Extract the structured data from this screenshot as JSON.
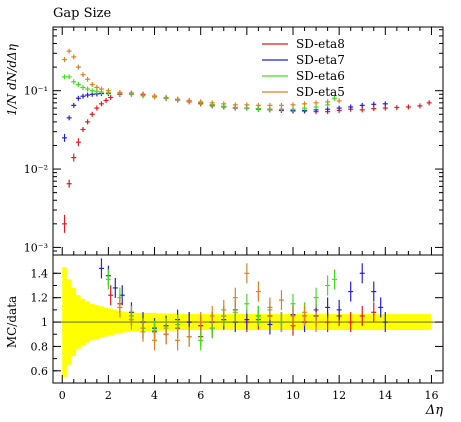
{
  "colors": {
    "band": "#ffff00",
    "ref_line": "#7a7a00",
    "axis": "#000000"
  },
  "chart_data": [
    {
      "type": "scatter",
      "title": "Gap Size",
      "ylabel": "1/N dN/dΔη",
      "xlabel": "",
      "y_scale": "log",
      "xlim": [
        -0.4,
        16.5
      ],
      "ylim": [
        0.0008,
        0.65
      ],
      "y_tick_values": [
        0.001,
        0.01,
        0.1
      ],
      "y_tick_labels": [
        "10⁻³",
        "10⁻²",
        "10⁻¹"
      ],
      "legend": {
        "position": "top-right"
      },
      "series": [
        {
          "name": "SD-eta8",
          "color": "#e41a1c",
          "x": [
            0.1,
            0.3,
            0.5,
            0.7,
            0.9,
            1.1,
            1.3,
            1.5,
            1.7,
            1.9,
            2.1,
            2.5,
            3.0,
            3.5,
            4.0,
            4.5,
            5.0,
            5.5,
            6.0,
            6.5,
            7.0,
            7.5,
            8.0,
            8.5,
            9.0,
            9.5,
            10.0,
            10.5,
            11.0,
            11.5,
            12.0,
            12.5,
            13.0,
            13.5,
            14.0,
            14.5,
            15.0,
            15.5,
            15.9
          ],
          "y": [
            0.002,
            0.0065,
            0.014,
            0.022,
            0.032,
            0.04,
            0.05,
            0.06,
            0.068,
            0.075,
            0.082,
            0.09,
            0.093,
            0.09,
            0.085,
            0.08,
            0.076,
            0.072,
            0.068,
            0.064,
            0.062,
            0.06,
            0.06,
            0.058,
            0.057,
            0.056,
            0.055,
            0.055,
            0.054,
            0.054,
            0.056,
            0.058,
            0.057,
            0.059,
            0.06,
            0.061,
            0.062,
            0.064,
            0.07
          ]
        },
        {
          "name": "SD-eta7",
          "color": "#2222dd",
          "x": [
            0.1,
            0.3,
            0.5,
            0.7,
            0.9,
            1.1,
            1.3,
            1.5,
            1.7,
            2.0,
            2.5,
            3.0,
            3.5,
            4.0,
            4.5,
            5.0,
            5.5,
            6.0,
            6.5,
            7.0,
            7.5,
            8.0,
            8.5,
            9.0,
            9.5,
            10.0,
            10.5,
            11.0,
            11.5,
            12.0,
            12.5,
            13.0,
            13.5,
            14.0
          ],
          "y": [
            0.025,
            0.045,
            0.065,
            0.08,
            0.085,
            0.088,
            0.09,
            0.091,
            0.092,
            0.092,
            0.091,
            0.09,
            0.088,
            0.085,
            0.08,
            0.077,
            0.074,
            0.07,
            0.066,
            0.063,
            0.061,
            0.06,
            0.059,
            0.058,
            0.057,
            0.056,
            0.056,
            0.057,
            0.058,
            0.06,
            0.062,
            0.065,
            0.067,
            0.068
          ]
        },
        {
          "name": "SD-eta6",
          "color": "#44dd22",
          "x": [
            0.1,
            0.3,
            0.5,
            0.7,
            0.9,
            1.1,
            1.3,
            1.5,
            1.7,
            2.0,
            2.5,
            3.0,
            3.5,
            4.0,
            4.5,
            5.0,
            5.5,
            6.0,
            6.5,
            7.0,
            7.5,
            8.0,
            8.5,
            9.0,
            9.5,
            10.0,
            10.5,
            11.0,
            11.5,
            11.8
          ],
          "y": [
            0.15,
            0.15,
            0.13,
            0.12,
            0.11,
            0.105,
            0.1,
            0.098,
            0.096,
            0.094,
            0.092,
            0.09,
            0.086,
            0.083,
            0.08,
            0.077,
            0.073,
            0.07,
            0.066,
            0.063,
            0.061,
            0.06,
            0.059,
            0.058,
            0.058,
            0.058,
            0.06,
            0.062,
            0.066,
            0.08
          ]
        },
        {
          "name": "SD-eta5",
          "color": "#e08020",
          "x": [
            0.1,
            0.3,
            0.5,
            0.7,
            0.9,
            1.1,
            1.3,
            1.5,
            1.7,
            2.0,
            2.5,
            3.0,
            3.5,
            4.0,
            4.5,
            5.0,
            5.5,
            6.0,
            6.5,
            7.0,
            7.5,
            8.0,
            8.5,
            9.0,
            9.5,
            10.0,
            10.5,
            11.0,
            11.5,
            12.0
          ],
          "y": [
            0.25,
            0.32,
            0.27,
            0.2,
            0.16,
            0.14,
            0.12,
            0.11,
            0.105,
            0.1,
            0.095,
            0.092,
            0.088,
            0.085,
            0.082,
            0.078,
            0.075,
            0.072,
            0.07,
            0.068,
            0.066,
            0.066,
            0.065,
            0.065,
            0.065,
            0.066,
            0.068,
            0.07,
            0.072,
            0.074
          ]
        }
      ]
    },
    {
      "type": "scatter",
      "ylabel": "MC/data",
      "xlabel": "Δη",
      "xlim": [
        -0.4,
        16.5
      ],
      "ylim": [
        0.5,
        1.55
      ],
      "y_ticks": [
        0.6,
        0.8,
        1,
        1.2,
        1.4
      ],
      "x_ticks": [
        0,
        2,
        4,
        6,
        8,
        10,
        12,
        14,
        16
      ],
      "reference_line": 1,
      "band": {
        "x": [
          0.1,
          0.3,
          0.5,
          0.7,
          0.9,
          1.1,
          1.3,
          1.5,
          1.7,
          1.9,
          2.1,
          2.3,
          2.5,
          2.7,
          2.9,
          3.5,
          4.5,
          5.5,
          6.5,
          7.5,
          8.5,
          9.5,
          10.5,
          11.5,
          12.5,
          13.5,
          14.5,
          15.5,
          16.0
        ],
        "half_width": [
          0.45,
          0.35,
          0.28,
          0.22,
          0.19,
          0.17,
          0.15,
          0.14,
          0.13,
          0.12,
          0.11,
          0.1,
          0.09,
          0.085,
          0.08,
          0.075,
          0.07,
          0.065,
          0.065,
          0.065,
          0.065,
          0.065,
          0.065,
          0.065,
          0.065,
          0.065,
          0.065,
          0.065,
          0.065
        ]
      },
      "series": [
        {
          "name": "SD-eta8",
          "color": "#e41a1c",
          "x": [
            2.1,
            2.5,
            3.0,
            3.5,
            4.0,
            4.5,
            5.0,
            5.5,
            6.0,
            6.5,
            7.0,
            7.5,
            8.0,
            8.5,
            9.0,
            9.5,
            10.0,
            10.5,
            11.0,
            11.5,
            12.0,
            12.5,
            13.0,
            13.5
          ],
          "y": [
            1.22,
            1.15,
            1.05,
            0.95,
            0.92,
            0.9,
            0.95,
            1.0,
            0.88,
            0.95,
            1.05,
            1.1,
            1.0,
            1.02,
            1.05,
            1.0,
            0.97,
            1.05,
            1.1,
            1.0,
            1.05,
            1.0,
            1.05,
            1.08
          ]
        },
        {
          "name": "SD-eta7",
          "color": "#2222dd",
          "x": [
            1.7,
            2.0,
            2.3,
            2.6,
            3.0,
            3.5,
            4.0,
            4.5,
            5.0,
            5.5,
            6.0,
            6.5,
            7.0,
            7.5,
            8.0,
            8.5,
            9.0,
            9.5,
            10.0,
            10.5,
            11.0,
            11.5,
            12.0,
            12.5,
            13.0,
            13.5,
            13.8,
            14.0
          ],
          "y": [
            1.44,
            1.38,
            1.28,
            1.22,
            1.08,
            1.0,
            0.95,
            0.97,
            1.02,
            1.0,
            0.97,
            1.0,
            1.02,
            1.0,
            1.02,
            1.05,
            0.98,
            1.0,
            1.06,
            1.0,
            1.05,
            1.12,
            1.1,
            1.25,
            1.4,
            1.25,
            1.12,
            1.0
          ]
        },
        {
          "name": "SD-eta6",
          "color": "#44dd22",
          "x": [
            2.0,
            2.5,
            3.0,
            3.5,
            4.0,
            4.5,
            5.0,
            5.5,
            6.0,
            6.5,
            7.0,
            7.5,
            8.0,
            8.5,
            9.0,
            9.5,
            10.0,
            10.5,
            11.0,
            11.5,
            11.8
          ],
          "y": [
            1.35,
            1.2,
            1.05,
            0.95,
            0.93,
            0.95,
            0.98,
            0.88,
            0.85,
            0.95,
            1.05,
            1.08,
            1.15,
            1.05,
            1.1,
            1.0,
            1.15,
            1.08,
            1.2,
            1.3,
            1.35
          ]
        },
        {
          "name": "SD-eta5",
          "color": "#e08020",
          "x": [
            2.5,
            3.0,
            3.5,
            4.0,
            4.5,
            5.0,
            5.5,
            6.0,
            6.5,
            7.0,
            7.5,
            8.0,
            8.5,
            9.0,
            9.5,
            10.0,
            10.5,
            11.0
          ],
          "y": [
            1.12,
            1.02,
            0.92,
            0.85,
            0.9,
            0.85,
            0.88,
            1.0,
            1.05,
            1.1,
            1.2,
            1.4,
            1.25,
            1.12,
            1.18,
            1.05,
            1.05,
            1.0
          ]
        }
      ]
    }
  ]
}
